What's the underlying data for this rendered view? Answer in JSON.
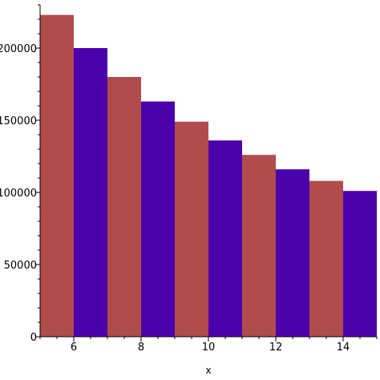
{
  "chart_data": {
    "type": "bar",
    "title": "",
    "xlabel": "x",
    "ylabel": "",
    "grid": false,
    "xlim": [
      5,
      15
    ],
    "ylim": [
      0,
      230000
    ],
    "xticks": [
      6,
      8,
      10,
      12,
      14
    ],
    "yticks": [
      0,
      50000,
      100000,
      150000,
      200000
    ],
    "bars": [
      {
        "x_start": 5,
        "x_end": 6,
        "value": 223000,
        "color": "#b04c4c"
      },
      {
        "x_start": 6,
        "x_end": 7,
        "value": 200000,
        "color": "#4b00ac"
      },
      {
        "x_start": 7,
        "x_end": 8,
        "value": 180000,
        "color": "#b04c4c"
      },
      {
        "x_start": 8,
        "x_end": 9,
        "value": 163000,
        "color": "#4b00ac"
      },
      {
        "x_start": 9,
        "x_end": 10,
        "value": 149000,
        "color": "#b04c4c"
      },
      {
        "x_start": 10,
        "x_end": 11,
        "value": 136000,
        "color": "#4b00ac"
      },
      {
        "x_start": 11,
        "x_end": 12,
        "value": 126000,
        "color": "#b04c4c"
      },
      {
        "x_start": 12,
        "x_end": 13,
        "value": 116000,
        "color": "#4b00ac"
      },
      {
        "x_start": 13,
        "x_end": 14,
        "value": 108000,
        "color": "#b04c4c"
      },
      {
        "x_start": 14,
        "x_end": 15,
        "value": 101000,
        "color": "#4b00ac"
      }
    ]
  }
}
